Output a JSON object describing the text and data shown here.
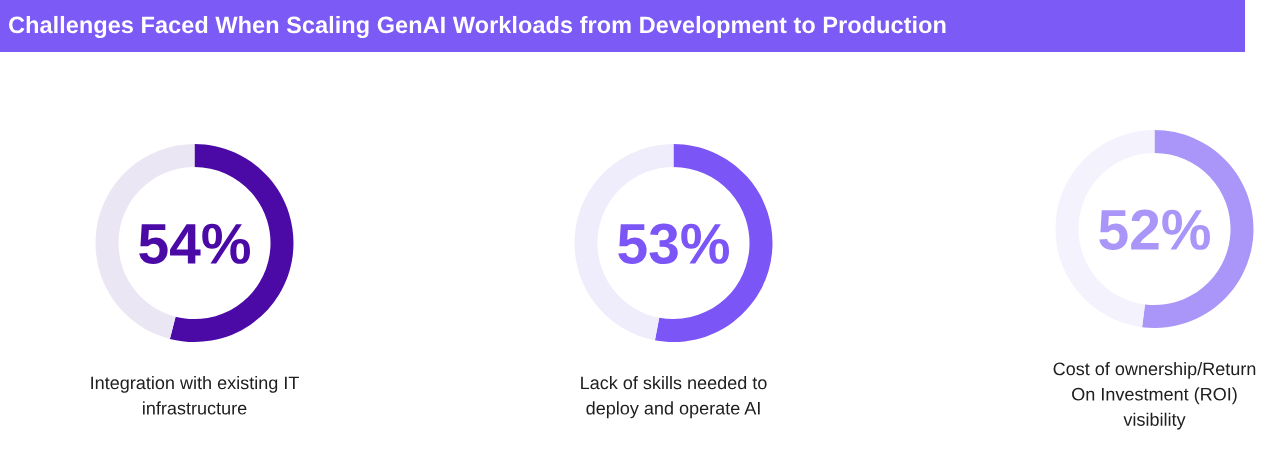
{
  "chart_data": [
    {
      "type": "donut",
      "title": "Challenges Faced When Scaling GenAI Workloads from Development to Production",
      "categories": [
        "Integration with existing IT infrastructure",
        null
      ],
      "values": [
        54,
        46
      ],
      "colors": [
        "#4b0aa6",
        "#ebe6f3"
      ],
      "value_labels": [
        "54%",
        null
      ]
    },
    {
      "type": "donut",
      "categories": [
        "Lack of skills needed to deploy and operate AI",
        null
      ],
      "values": [
        53,
        47
      ],
      "colors": [
        "#7b55f6",
        "#efecfc"
      ],
      "value_labels": [
        "53%",
        null
      ]
    },
    {
      "type": "donut",
      "categories": [
        "Cost of ownership/Return On Investment (ROI) visibility",
        null
      ],
      "values": [
        52,
        48
      ],
      "colors": [
        "#a996f8",
        "#f4f2fd"
      ],
      "value_labels": [
        "52%",
        null
      ]
    }
  ]
}
